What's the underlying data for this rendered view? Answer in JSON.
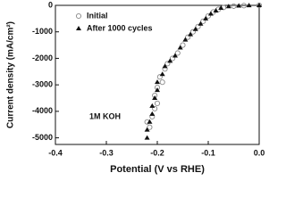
{
  "chart_data": {
    "type": "scatter",
    "xlabel": "Potential (V vs RHE)",
    "ylabel": "Current density (mA/cm²)",
    "annotation": "1M KOH",
    "xlim": [
      -0.4,
      0
    ],
    "xticks": [
      -0.4,
      -0.3,
      -0.2,
      -0.1,
      {
        "value": 0,
        "label": "0.0"
      }
    ],
    "ylim": [
      -5250,
      0
    ],
    "yticks": [
      0,
      -1000,
      -2000,
      -3000,
      -4000,
      -5000
    ],
    "legend": "upper left",
    "series": [
      {
        "name": "Initial",
        "color": "#888888",
        "marker": "circle",
        "x": [
          -0.215,
          -0.22,
          -0.21,
          -0.205,
          -0.2,
          -0.205,
          -0.2,
          -0.19,
          -0.195,
          -0.185,
          -0.18,
          -0.17,
          -0.16,
          -0.15,
          -0.14,
          -0.13,
          -0.12,
          -0.11,
          -0.1,
          -0.09,
          -0.08,
          -0.07,
          -0.05,
          -0.03,
          0
        ],
        "values": [
          -4600,
          -4400,
          -4200,
          -3900,
          -3700,
          -3400,
          -3100,
          -2900,
          -2700,
          -2400,
          -2200,
          -2000,
          -1800,
          -1500,
          -1200,
          -1000,
          -800,
          -600,
          -400,
          -250,
          -150,
          -80,
          -30,
          -10,
          0
        ]
      },
      {
        "name": "After 1000 cycles",
        "color": "#111111",
        "marker": "triangle",
        "x": [
          -0.22,
          -0.22,
          -0.215,
          -0.21,
          -0.21,
          -0.205,
          -0.2,
          -0.2,
          -0.19,
          -0.185,
          -0.175,
          -0.165,
          -0.155,
          -0.145,
          -0.135,
          -0.125,
          -0.115,
          -0.105,
          -0.095,
          -0.085,
          -0.075,
          -0.06,
          -0.04,
          -0.02,
          0
        ],
        "values": [
          -5000,
          -4700,
          -4400,
          -4100,
          -3800,
          -3500,
          -3200,
          -2900,
          -2600,
          -2300,
          -2100,
          -1900,
          -1600,
          -1300,
          -1100,
          -900,
          -700,
          -500,
          -320,
          -200,
          -100,
          -40,
          -15,
          -5,
          0
        ]
      }
    ]
  }
}
